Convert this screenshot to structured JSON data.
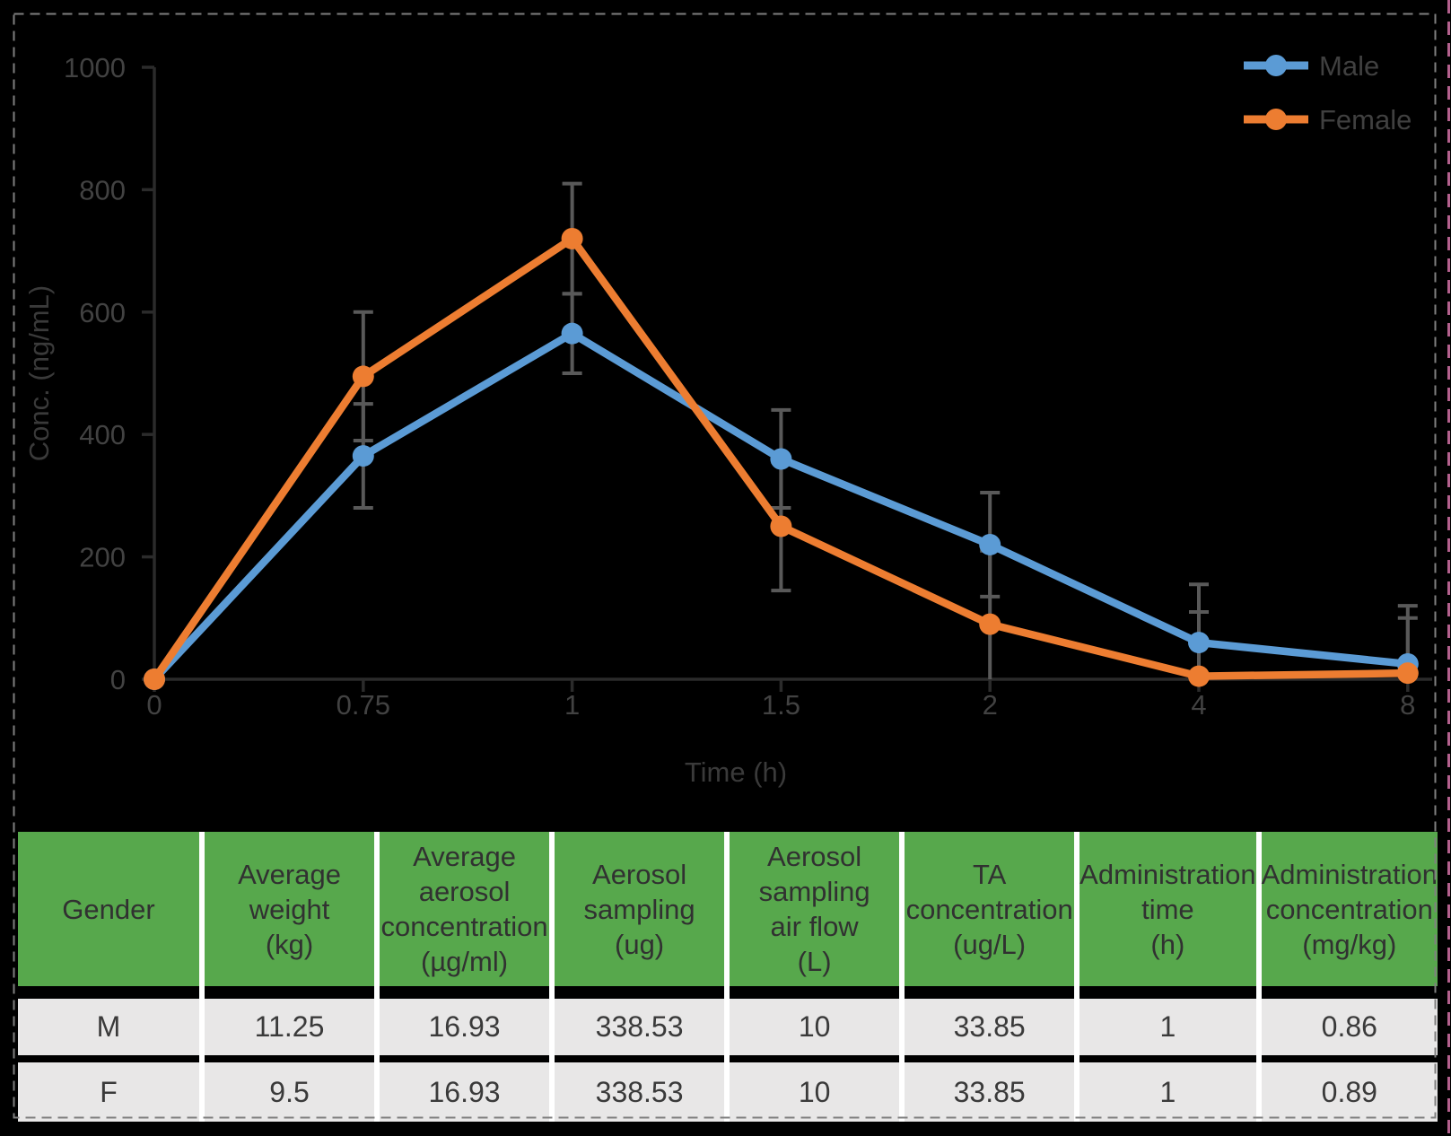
{
  "figure": {
    "background": "#000000",
    "border_color": "#7f7f7f",
    "right_guide_color": "#b4618e"
  },
  "chart_data": {
    "type": "line",
    "title": "",
    "x_categories": [
      "0",
      "0.75",
      "1",
      "1.5",
      "2",
      "4",
      "8"
    ],
    "xlabel": "Time (h)",
    "ylabel": "Conc. (ng/mL)",
    "ylim": [
      0,
      1000
    ],
    "yticks": [
      0,
      200,
      400,
      600,
      800,
      1000
    ],
    "grid": false,
    "legend_position": "top-right",
    "axis_color": "#2b2b2b",
    "tick_label_color": "#424242",
    "error_bar_color": "#595959",
    "series": [
      {
        "name": "Male",
        "color": "#5b9bd5",
        "values": [
          0,
          365,
          565,
          360,
          220,
          60,
          25
        ],
        "error": [
          0,
          85,
          65,
          80,
          85,
          95,
          95
        ]
      },
      {
        "name": "Female",
        "color": "#ed7d31",
        "values": [
          0,
          495,
          720,
          250,
          90,
          5,
          10
        ],
        "error": [
          0,
          105,
          90,
          105,
          120,
          105,
          90
        ]
      }
    ]
  },
  "table": {
    "header_bg": "#57a84c",
    "row_bg": "#e8e7e7",
    "text_color": "#3a3a3a",
    "header_text_color": "#313131",
    "headers": [
      "Gender",
      "Average\nweight\n(kg)",
      "Average\naerosol\nconcentration\n(µg/ml)",
      "Aerosol\nsampling\n(ug)",
      "Aerosol\nsampling\nair flow\n(L)",
      "TA\nconcentration\n(ug/L)",
      "Administration\ntime\n(h)",
      "Administration\nconcentration\n(mg/kg)"
    ],
    "rows": [
      [
        "M",
        "11.25",
        "16.93",
        "338.53",
        "10",
        "33.85",
        "1",
        "0.86"
      ],
      [
        "F",
        "9.5",
        "16.93",
        "338.53",
        "10",
        "33.85",
        "1",
        "0.89"
      ]
    ]
  }
}
